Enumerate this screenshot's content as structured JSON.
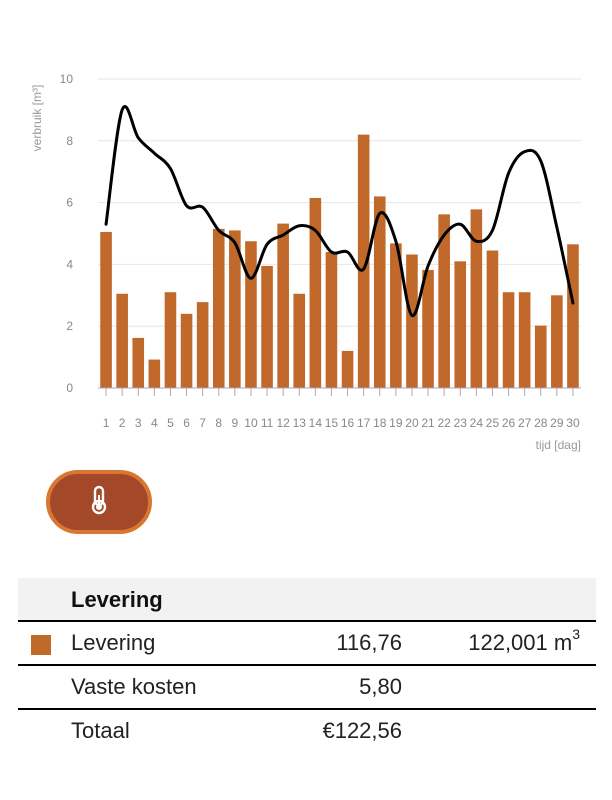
{
  "chart_data": {
    "type": "bar",
    "categories": [
      "1",
      "2",
      "3",
      "4",
      "5",
      "6",
      "7",
      "8",
      "9",
      "10",
      "11",
      "12",
      "13",
      "14",
      "15",
      "16",
      "17",
      "18",
      "19",
      "20",
      "21",
      "22",
      "23",
      "24",
      "25",
      "26",
      "27",
      "28",
      "29",
      "30"
    ],
    "series": [
      {
        "kind": "bar",
        "values": [
          5.05,
          3.05,
          1.62,
          0.92,
          3.1,
          2.4,
          2.78,
          5.15,
          5.1,
          4.75,
          3.95,
          5.32,
          3.05,
          6.15,
          4.4,
          1.2,
          8.2,
          6.2,
          4.68,
          4.32,
          3.82,
          5.62,
          4.1,
          5.78,
          4.45,
          3.1,
          3.1,
          2.02,
          3.0,
          4.65
        ]
      },
      {
        "kind": "line",
        "values": [
          5.3,
          9.0,
          8.1,
          7.6,
          7.1,
          5.9,
          5.85,
          5.1,
          4.7,
          3.55,
          4.65,
          4.95,
          5.25,
          5.1,
          4.4,
          4.4,
          3.85,
          5.65,
          4.75,
          2.35,
          3.95,
          4.95,
          5.3,
          4.75,
          5.1,
          6.95,
          7.65,
          7.35,
          5.2,
          2.75
        ]
      }
    ],
    "ylabel": "verbruik [m³]",
    "xlabel": "tijd [dag]",
    "ylim": [
      0,
      10
    ],
    "yticks": [
      0,
      2,
      4,
      6,
      8,
      10
    ],
    "grid": true,
    "colors": {
      "bar": "#c0692b",
      "line": "#000000",
      "grid": "#e6e6e6",
      "axis": "#aaaaaa"
    }
  },
  "button": {
    "icon": "thermometer-icon",
    "bg": "#a4482a",
    "border": "#d9762f"
  },
  "summary": {
    "title": "Levering",
    "rows": [
      {
        "label": "Levering",
        "amount": "116,76",
        "qty": "122,001 m",
        "qty_sup": "3",
        "swatch": "#c0692b"
      },
      {
        "label": "Vaste kosten",
        "amount": "5,80",
        "qty": ""
      },
      {
        "label": "Totaal",
        "amount": "€122,56",
        "qty": ""
      }
    ]
  }
}
